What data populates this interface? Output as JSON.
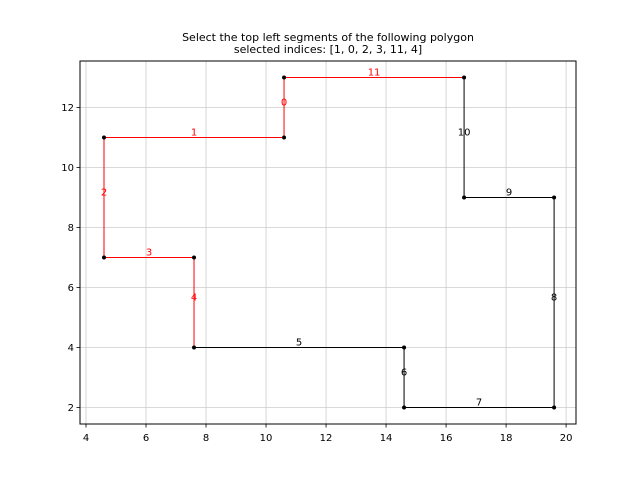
{
  "chart_data": {
    "type": "line",
    "title": "Select the top left segments of the following polygon",
    "subtitle": "selected indices: [1, 0, 2, 3, 11, 4]",
    "xlim": [
      3.8,
      20.33
    ],
    "ylim": [
      1.45,
      13.55
    ],
    "xticks": [
      4,
      6,
      8,
      10,
      12,
      14,
      16,
      18,
      20
    ],
    "yticks": [
      2,
      4,
      6,
      8,
      10,
      12
    ],
    "grid": true,
    "colors": {
      "selected": "#ff0000",
      "unselected": "#000000",
      "grid": "#cccccc"
    },
    "vertices": [
      [
        10.6,
        13
      ],
      [
        10.6,
        11
      ],
      [
        4.6,
        11
      ],
      [
        4.6,
        7
      ],
      [
        7.6,
        7
      ],
      [
        7.6,
        4
      ],
      [
        14.6,
        4
      ],
      [
        14.6,
        2
      ],
      [
        19.6,
        2
      ],
      [
        19.6,
        9
      ],
      [
        16.6,
        9
      ],
      [
        16.6,
        13
      ]
    ],
    "segments": [
      {
        "label": "0",
        "start": [
          10.6,
          13
        ],
        "end": [
          10.6,
          11
        ],
        "selected": true
      },
      {
        "label": "1",
        "start": [
          10.6,
          11
        ],
        "end": [
          4.6,
          11
        ],
        "selected": true
      },
      {
        "label": "2",
        "start": [
          4.6,
          11
        ],
        "end": [
          4.6,
          7
        ],
        "selected": true
      },
      {
        "label": "3",
        "start": [
          4.6,
          7
        ],
        "end": [
          7.6,
          7
        ],
        "selected": true
      },
      {
        "label": "4",
        "start": [
          7.6,
          7
        ],
        "end": [
          7.6,
          4
        ],
        "selected": true
      },
      {
        "label": "5",
        "start": [
          7.6,
          4
        ],
        "end": [
          14.6,
          4
        ],
        "selected": false
      },
      {
        "label": "6",
        "start": [
          14.6,
          4
        ],
        "end": [
          14.6,
          2
        ],
        "selected": false
      },
      {
        "label": "7",
        "start": [
          14.6,
          2
        ],
        "end": [
          19.6,
          2
        ],
        "selected": false
      },
      {
        "label": "8",
        "start": [
          19.6,
          2
        ],
        "end": [
          19.6,
          9
        ],
        "selected": false
      },
      {
        "label": "9",
        "start": [
          19.6,
          9
        ],
        "end": [
          16.6,
          9
        ],
        "selected": false
      },
      {
        "label": "10",
        "start": [
          16.6,
          9
        ],
        "end": [
          16.6,
          13
        ],
        "selected": false
      },
      {
        "label": "11",
        "start": [
          16.6,
          13
        ],
        "end": [
          10.6,
          13
        ],
        "selected": true
      }
    ]
  }
}
